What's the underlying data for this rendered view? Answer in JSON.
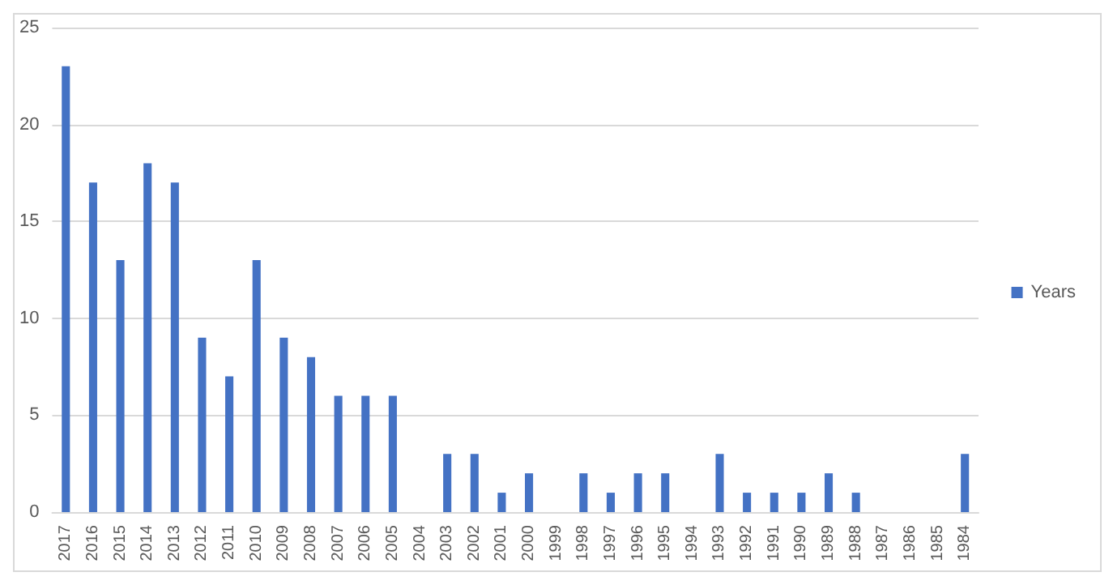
{
  "chart_data": {
    "type": "bar",
    "categories": [
      "2017",
      "2016",
      "2015",
      "2014",
      "2013",
      "2012",
      "2011",
      "2010",
      "2009",
      "2008",
      "2007",
      "2006",
      "2005",
      "2004",
      "2003",
      "2002",
      "2001",
      "2000",
      "1999",
      "1998",
      "1997",
      "1996",
      "1995",
      "1994",
      "1993",
      "1992",
      "1991",
      "1990",
      "1989",
      "1988",
      "1987",
      "1986",
      "1985",
      "1984"
    ],
    "series": [
      {
        "name": "Years",
        "color": "#4472c4",
        "values": [
          23,
          17,
          13,
          18,
          17,
          9,
          7,
          13,
          9,
          8,
          6,
          6,
          6,
          0,
          3,
          3,
          1,
          2,
          0,
          2,
          1,
          2,
          2,
          0,
          3,
          1,
          1,
          1,
          2,
          1,
          0,
          0,
          0,
          3
        ]
      }
    ],
    "ylim": [
      0,
      25
    ],
    "yticks": [
      0,
      5,
      10,
      15,
      20,
      25
    ],
    "grid": "y",
    "legend": "right"
  }
}
